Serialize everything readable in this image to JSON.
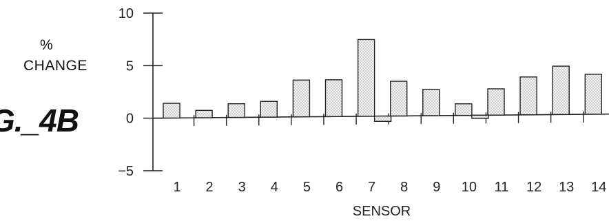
{
  "figure_label": "G._4B",
  "chart_data": {
    "type": "bar",
    "ylabel_line1": "%",
    "ylabel_line2": "CHANGE",
    "xlabel": "SENSOR",
    "ylim": [
      -5,
      10
    ],
    "yticks": [
      "10",
      "5",
      "0",
      "−5"
    ],
    "categories": [
      "1",
      "2",
      "3",
      "4",
      "5",
      "6",
      "7",
      "8",
      "9",
      "10",
      "11",
      "12",
      "13",
      "14"
    ],
    "series": [
      {
        "values": [
          1.4,
          0.7,
          1.3,
          1.5,
          3.5,
          3.5,
          7.3,
          3.3,
          2.5,
          1.1,
          2.5,
          3.6,
          4.6,
          3.8
        ]
      },
      {
        "values": [
          null,
          null,
          null,
          null,
          null,
          null,
          -0.5,
          null,
          null,
          -0.3,
          null,
          null,
          null,
          null
        ]
      }
    ],
    "grid": false,
    "legend": "none",
    "colors": {
      "bar_fill": "#efefef",
      "stroke": "#222222"
    }
  }
}
